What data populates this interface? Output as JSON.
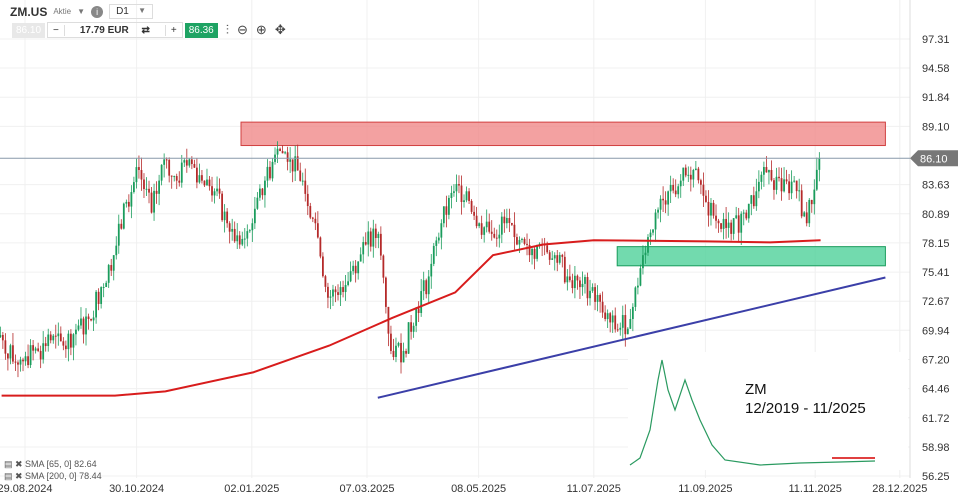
{
  "header": {
    "symbol": "ZM.US",
    "type": "Aktie",
    "info_icon": "info-icon",
    "interval": "D1"
  },
  "order": {
    "sell_price": "86.10",
    "quantity": "17.79 EUR",
    "buy_price": "86.36",
    "minus": "−",
    "plus": "+",
    "swap_icon": "swap-icon"
  },
  "tools": [
    "indicator-icon",
    "zoom-out-icon",
    "zoom-in-icon",
    "crosshair-icon"
  ],
  "legend": [
    {
      "label": "SMA [65, 0] 82.64"
    },
    {
      "label": "SMA [200, 0] 78.44"
    }
  ],
  "inset": {
    "title": "ZM",
    "period": "12/2019 - 11/2025"
  },
  "chart_data": {
    "type": "candlestick",
    "y_ticks": [
      "97.31",
      "94.58",
      "91.84",
      "89.10",
      "83.63",
      "80.89",
      "78.15",
      "75.41",
      "72.67",
      "69.94",
      "67.20",
      "64.46",
      "61.72",
      "58.98",
      "56.25"
    ],
    "ylim": [
      56.25,
      97.31
    ],
    "x_ticks": [
      "29.08.2024",
      "30.10.2024",
      "02.01.2025",
      "07.03.2025",
      "08.05.2025",
      "11.07.2025",
      "11.09.2025",
      "11.11.2025",
      "28.12.2025"
    ],
    "current_price": "86.10",
    "weekly_dates": [
      "2024-08-16",
      "2024-08-23",
      "2024-08-30",
      "2024-09-06",
      "2024-09-13",
      "2024-09-20",
      "2024-09-27",
      "2024-10-04",
      "2024-10-11",
      "2024-10-18",
      "2024-10-25",
      "2024-11-01",
      "2024-11-08",
      "2024-11-15",
      "2024-11-22",
      "2024-11-29",
      "2024-12-06",
      "2024-12-13",
      "2024-12-20",
      "2024-12-27",
      "2025-01-03",
      "2025-01-10",
      "2025-01-17",
      "2025-01-24",
      "2025-01-31",
      "2025-02-07",
      "2025-02-14",
      "2025-02-21",
      "2025-02-28",
      "2025-03-07",
      "2025-03-14",
      "2025-03-21",
      "2025-03-28",
      "2025-04-04",
      "2025-04-11",
      "2025-04-18",
      "2025-04-25",
      "2025-05-02",
      "2025-05-09",
      "2025-05-16",
      "2025-05-23",
      "2025-05-30",
      "2025-06-06",
      "2025-06-13",
      "2025-06-20",
      "2025-06-27",
      "2025-07-04",
      "2025-07-11",
      "2025-07-18",
      "2025-07-25",
      "2025-08-01",
      "2025-08-08",
      "2025-08-15",
      "2025-08-22",
      "2025-08-29",
      "2025-09-05",
      "2025-09-12",
      "2025-09-19",
      "2025-09-26",
      "2025-10-03",
      "2025-10-10",
      "2025-10-17",
      "2025-10-24",
      "2025-10-31",
      "2025-11-07",
      "2025-11-14"
    ],
    "weekly_closes": [
      69.5,
      67,
      67.5,
      68,
      69,
      68.5,
      70,
      71,
      74,
      77,
      82,
      85,
      81,
      86,
      84,
      86,
      84,
      83,
      80,
      78,
      80,
      84,
      87,
      86,
      84,
      80,
      73,
      74,
      76,
      78,
      79,
      68,
      68,
      72,
      75,
      80,
      83,
      83,
      80,
      79,
      80,
      78,
      77,
      78,
      77,
      75,
      74,
      74,
      71,
      70,
      71,
      77,
      81,
      83,
      84,
      85,
      82,
      80,
      79,
      81,
      83,
      85,
      83,
      84,
      80,
      86.1
    ],
    "sma200": {
      "color": "#d81c1c",
      "points": [
        [
          "2024-08-16",
          63.8
        ],
        [
          "2024-10-18",
          63.8
        ],
        [
          "2024-11-15",
          64.2
        ],
        [
          "2025-01-03",
          66
        ],
        [
          "2025-02-14",
          68.5
        ],
        [
          "2025-03-21",
          71.1
        ],
        [
          "2025-04-25",
          73.5
        ],
        [
          "2025-05-16",
          77
        ],
        [
          "2025-06-13",
          78
        ],
        [
          "2025-07-11",
          78.4
        ],
        [
          "2025-09-12",
          78.3
        ],
        [
          "2025-10-17",
          78.2
        ],
        [
          "2025-11-14",
          78.4
        ]
      ]
    },
    "resistance_zone": {
      "from": "2024-12-27",
      "to": "2025-12-20",
      "low": 87.3,
      "high": 89.5,
      "color": "#f08a8a"
    },
    "support_zone": {
      "from": "2025-07-24",
      "to": "2025-12-20",
      "low": 76,
      "high": 77.8,
      "color": "#4fd19a"
    },
    "trendline": {
      "points": [
        [
          "2025-03-13",
          63.6
        ],
        [
          "2025-12-20",
          74.9
        ]
      ],
      "color": "#3b3fa8"
    },
    "colors": {
      "up": "#1a9c5c",
      "down": "#b52a2a"
    }
  }
}
